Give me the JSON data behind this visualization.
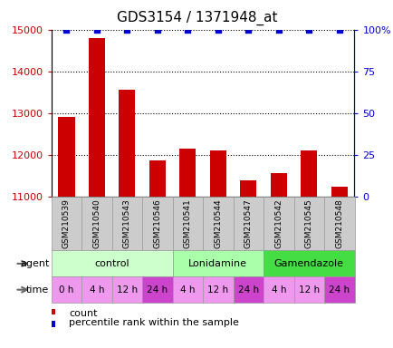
{
  "title": "GDS3154 / 1371948_at",
  "samples": [
    "GSM210539",
    "GSM210540",
    "GSM210543",
    "GSM210546",
    "GSM210541",
    "GSM210544",
    "GSM210547",
    "GSM210542",
    "GSM210545",
    "GSM210548"
  ],
  "counts": [
    12900,
    14800,
    13550,
    11870,
    12150,
    12100,
    11380,
    11570,
    12100,
    11230
  ],
  "percentiles": [
    100,
    100,
    100,
    100,
    100,
    100,
    100,
    100,
    100,
    100
  ],
  "ylim_left": [
    11000,
    15000
  ],
  "ylim_right": [
    0,
    100
  ],
  "yticks_left": [
    11000,
    12000,
    13000,
    14000,
    15000
  ],
  "yticks_right": [
    0,
    25,
    50,
    75,
    100
  ],
  "bar_color": "#cc0000",
  "dot_color": "#0000cc",
  "agent_data": [
    {
      "label": "control",
      "start": 0,
      "end": 4,
      "color": "#ccffcc"
    },
    {
      "label": "Lonidamine",
      "start": 4,
      "end": 7,
      "color": "#aaffaa"
    },
    {
      "label": "Gamendazole",
      "start": 7,
      "end": 10,
      "color": "#44dd44"
    }
  ],
  "time_labels": [
    "0 h",
    "4 h",
    "12 h",
    "24 h",
    "4 h",
    "12 h",
    "24 h",
    "4 h",
    "12 h",
    "24 h"
  ],
  "time_colors": [
    "#ee99ee",
    "#ee99ee",
    "#ee99ee",
    "#cc44cc",
    "#ee99ee",
    "#ee99ee",
    "#cc44cc",
    "#ee99ee",
    "#ee99ee",
    "#cc44cc"
  ],
  "agent_label": "agent",
  "time_label": "time",
  "legend_count_label": "count",
  "legend_pct_label": "percentile rank within the sample",
  "sample_bg_color": "#cccccc",
  "sample_border_color": "#999999",
  "grid_color": "#555555",
  "title_fontsize": 11,
  "tick_fontsize": 8,
  "label_fontsize": 8
}
